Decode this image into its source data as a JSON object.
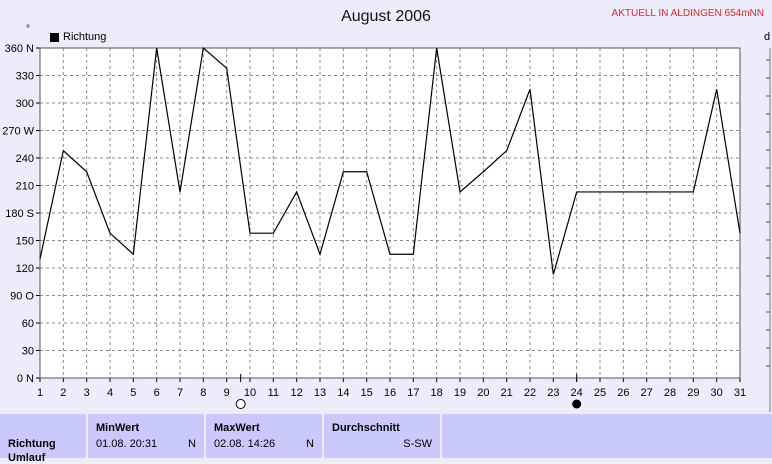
{
  "header": {
    "title": "August 2006",
    "status": "AKTUELL IN ALDINGEN 654mNN",
    "degree_mark": "°",
    "right_mark": "d"
  },
  "legend": {
    "label": "Richtung"
  },
  "chart_data": {
    "type": "line",
    "title": "August 2006",
    "x": [
      1,
      2,
      3,
      4,
      5,
      6,
      7,
      8,
      9,
      10,
      11,
      12,
      13,
      14,
      15,
      16,
      17,
      18,
      19,
      20,
      21,
      22,
      23,
      24,
      25,
      26,
      27,
      28,
      29,
      30,
      31
    ],
    "series": [
      {
        "name": "Richtung",
        "values": [
          130,
          248,
          225,
          158,
          135,
          360,
          203,
          360,
          338,
          158,
          158,
          203,
          135,
          225,
          225,
          135,
          135,
          360,
          203,
          225,
          248,
          315,
          113,
          203,
          203,
          203,
          203,
          203,
          203,
          315,
          158
        ]
      }
    ],
    "ylim": [
      0,
      360
    ],
    "xlim": [
      1,
      31
    ],
    "yticks": [
      {
        "v": 0,
        "label": "0 N"
      },
      {
        "v": 30,
        "label": "30"
      },
      {
        "v": 60,
        "label": "60"
      },
      {
        "v": 90,
        "label": "90 O"
      },
      {
        "v": 120,
        "label": "120"
      },
      {
        "v": 150,
        "label": "150"
      },
      {
        "v": 180,
        "label": "180 S"
      },
      {
        "v": 210,
        "label": "210"
      },
      {
        "v": 240,
        "label": "240"
      },
      {
        "v": 270,
        "label": "270 W"
      },
      {
        "v": 300,
        "label": "300"
      },
      {
        "v": 330,
        "label": "330"
      },
      {
        "v": 360,
        "label": "360 N"
      }
    ],
    "xticks": [
      "1",
      "2",
      "3",
      "4",
      "5",
      "6",
      "7",
      "8",
      "9",
      "10",
      "11",
      "12",
      "13",
      "14",
      "15",
      "16",
      "17",
      "18",
      "19",
      "20",
      "21",
      "22",
      "23",
      "24",
      "25",
      "26",
      "27",
      "28",
      "29",
      "30",
      "31"
    ],
    "grid": true,
    "legend_position": "top-left",
    "moon": {
      "full_day": 9.6,
      "new_day": 24
    }
  },
  "table": {
    "row_label": "Richtung",
    "row_label2": "Umlauf",
    "min": {
      "title": "MinWert",
      "date": "01.08.  20:31",
      "dir": "N"
    },
    "max": {
      "title": "MaxWert",
      "date": "02.08.  14:26",
      "dir": "N"
    },
    "avg": {
      "title": "Durchschnitt",
      "value": "S-SW"
    }
  }
}
